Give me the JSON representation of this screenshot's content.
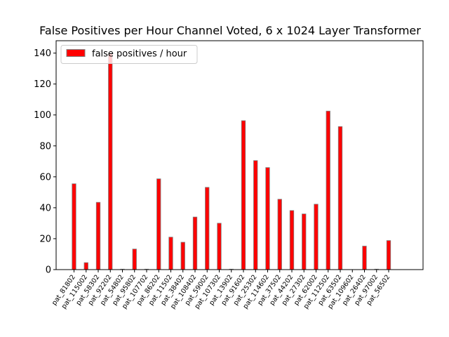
{
  "chart_data": {
    "type": "bar",
    "title": "False Positives per Hour Channel Voted, 6 x 1024 Layer Transformer",
    "xlabel": "",
    "ylabel": "",
    "ylim": [
      0,
      148
    ],
    "yticks": [
      0,
      20,
      40,
      60,
      80,
      100,
      120,
      140
    ],
    "grid": false,
    "legend_position": "top-left",
    "categories": [
      "pat_81802",
      "pat_115002",
      "pat_58302",
      "pat_92202",
      "pat_54802",
      "pat_95802",
      "pat_107702",
      "pat_86202",
      "pat_11502",
      "pat_38402",
      "pat_108402",
      "pat_59002",
      "pat_107302",
      "pat_13902",
      "pat_91602",
      "pat_25302",
      "pat_114602",
      "pat_37502",
      "pat_44202",
      "pat_27302",
      "pat_62002",
      "pat_112502",
      "pat_63502",
      "pat_109602",
      "pat_26402",
      "pat_97002",
      "pat_56502"
    ],
    "series": [
      {
        "name": "false positives / hour",
        "color": "#ff0000",
        "edgecolor": "#808080",
        "values": [
          55.5,
          4.5,
          43.5,
          140,
          0.3,
          13.3,
          0.3,
          58.7,
          21,
          17.7,
          34,
          53.2,
          30,
          0.3,
          96.3,
          70.5,
          66,
          45.5,
          38.2,
          36,
          42.3,
          102.5,
          92.5,
          0,
          15.2,
          0.3,
          18.8
        ]
      }
    ]
  }
}
